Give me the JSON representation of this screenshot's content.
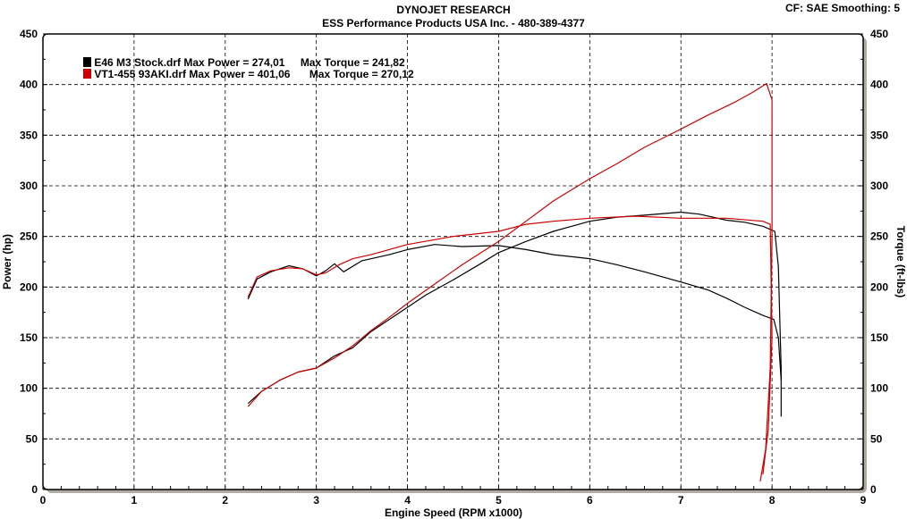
{
  "header": {
    "title": "DYNOJET RESEARCH",
    "subtitle": "ESS Performance Products USA Inc. - 480-389-4377",
    "settings": "CF: SAE  Smoothing: 5"
  },
  "chart_data": {
    "type": "line",
    "title": "DYNOJET RESEARCH",
    "subtitle": "ESS Performance Products USA Inc. - 480-389-4377",
    "xlabel": "Engine Speed (RPM x1000)",
    "ylabel": "Power (hp)",
    "y2label": "Torque (ft-lbs)",
    "xlim": [
      0,
      9
    ],
    "ylim": [
      0,
      450
    ],
    "y2lim": [
      0,
      450
    ],
    "xticks": [
      "0",
      "1",
      "2",
      "3",
      "4",
      "5",
      "6",
      "7",
      "8",
      "9"
    ],
    "yticks": [
      "0",
      "50",
      "100",
      "150",
      "200",
      "250",
      "300",
      "350",
      "400",
      "450"
    ],
    "grid": true,
    "legend_placement": "top-left",
    "legend": [
      {
        "file": "E46 M3 Stock.drf",
        "power_text": "Max Power = 274,01",
        "torque_text": "Max Torque = 241,82",
        "color": "#000000"
      },
      {
        "file": "VT1-455 93AKI.drf",
        "power_text": "Max Power = 401,06",
        "torque_text": "Max Torque = 270,12",
        "color": "#cc0000"
      }
    ],
    "series": [
      {
        "run": "E46 M3 Stock.drf",
        "quantity": "power",
        "color": "#000000",
        "x": [
          2.25,
          2.4,
          2.6,
          2.8,
          3.0,
          3.2,
          3.4,
          3.6,
          3.8,
          4.0,
          4.2,
          4.5,
          4.8,
          5.0,
          5.3,
          5.6,
          6.0,
          6.3,
          6.6,
          7.0,
          7.2,
          7.5,
          7.7,
          7.9,
          8.03,
          8.07,
          8.1,
          8.1
        ],
        "y": [
          85,
          97,
          108,
          116,
          120,
          132,
          140,
          156,
          168,
          180,
          192,
          207,
          223,
          234,
          245,
          255,
          265,
          269,
          271,
          274,
          272,
          266,
          264,
          260,
          255,
          220,
          120,
          72
        ]
      },
      {
        "run": "E46 M3 Stock.drf",
        "quantity": "torque",
        "color": "#000000",
        "x": [
          2.25,
          2.35,
          2.5,
          2.7,
          2.85,
          3.0,
          3.1,
          3.2,
          3.3,
          3.5,
          3.8,
          4.0,
          4.3,
          4.6,
          5.0,
          5.3,
          5.6,
          6.0,
          6.3,
          6.6,
          7.0,
          7.3,
          7.5,
          7.7,
          7.9,
          8.02,
          8.07,
          8.1
        ],
        "y": [
          188,
          208,
          215,
          221,
          218,
          211,
          216,
          223,
          215,
          226,
          232,
          237,
          242,
          240,
          241,
          237,
          232,
          228,
          222,
          215,
          205,
          197,
          189,
          180,
          172,
          168,
          150,
          108
        ]
      },
      {
        "run": "VT1-455 93AKI.drf",
        "quantity": "power",
        "color": "#cc0000",
        "x": [
          2.25,
          2.4,
          2.6,
          2.8,
          3.0,
          3.2,
          3.4,
          3.6,
          3.8,
          4.0,
          4.3,
          4.6,
          5.0,
          5.3,
          5.6,
          6.0,
          6.3,
          6.6,
          7.0,
          7.3,
          7.6,
          7.8,
          7.94,
          8.0,
          8.0,
          7.98,
          7.93,
          7.87
        ],
        "y": [
          82,
          97,
          108,
          116,
          120,
          130,
          142,
          157,
          170,
          184,
          203,
          222,
          245,
          265,
          285,
          307,
          322,
          338,
          356,
          370,
          383,
          393,
          401,
          385,
          250,
          120,
          40,
          8
        ]
      },
      {
        "run": "VT1-455 93AKI.drf",
        "quantity": "torque",
        "color": "#cc0000",
        "x": [
          2.25,
          2.35,
          2.5,
          2.7,
          2.85,
          3.0,
          3.1,
          3.25,
          3.4,
          3.6,
          4.0,
          4.5,
          5.0,
          5.3,
          5.6,
          6.0,
          6.5,
          7.0,
          7.5,
          7.9,
          7.98,
          8.0,
          7.96,
          7.9
        ],
        "y": [
          190,
          210,
          216,
          219,
          218,
          212,
          214,
          222,
          228,
          232,
          242,
          250,
          255,
          262,
          265,
          268,
          270,
          268,
          268,
          265,
          262,
          150,
          60,
          15
        ]
      }
    ]
  }
}
